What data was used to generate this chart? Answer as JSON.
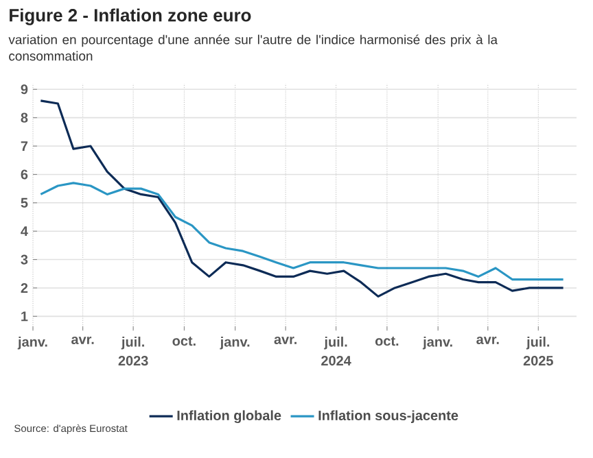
{
  "chart_data": {
    "type": "line",
    "title": "Figure 2 - Inflation zone euro",
    "subtitle": "variation en pourcentage d'une année sur l'autre de l'indice harmonisé des prix à la consommation",
    "x": [
      "2023-01-15",
      "2023-02-15",
      "2023-03-15",
      "2023-04-15",
      "2023-05-15",
      "2023-06-15",
      "2023-07-15",
      "2023-08-15",
      "2023-09-15",
      "2023-10-15",
      "2023-11-15",
      "2023-12-15",
      "2024-01-15",
      "2024-02-15",
      "2024-03-15",
      "2024-04-15",
      "2024-05-15",
      "2024-06-15",
      "2024-07-15",
      "2024-08-15",
      "2024-09-15",
      "2024-10-15",
      "2024-11-15",
      "2024-12-15",
      "2025-01-15",
      "2025-02-15",
      "2025-03-15",
      "2025-04-15",
      "2025-05-15",
      "2025-06-15",
      "2025-07-15",
      "2025-08-15"
    ],
    "series": [
      {
        "name": "Inflation globale",
        "color": "#0d2b56",
        "values": [
          8.6,
          8.5,
          6.9,
          7.0,
          6.1,
          5.5,
          5.3,
          5.2,
          4.3,
          2.9,
          2.4,
          2.9,
          2.8,
          2.6,
          2.4,
          2.4,
          2.6,
          2.5,
          2.6,
          2.2,
          1.7,
          2.0,
          2.2,
          2.4,
          2.5,
          2.3,
          2.2,
          2.2,
          1.9,
          2.0,
          2.0,
          2.0
        ]
      },
      {
        "name": "Inflation sous-jacente",
        "color": "#2a96c4",
        "values": [
          5.3,
          5.6,
          5.7,
          5.6,
          5.3,
          5.5,
          5.5,
          5.3,
          4.5,
          4.2,
          3.6,
          3.4,
          3.3,
          3.1,
          2.9,
          2.7,
          2.9,
          2.9,
          2.9,
          2.8,
          2.7,
          2.7,
          2.7,
          2.7,
          2.7,
          2.6,
          2.4,
          2.7,
          2.3,
          2.3,
          2.3,
          2.3
        ]
      }
    ],
    "xlim": [
      "2023-01-01",
      "2025-09-08"
    ],
    "xticks": [
      {
        "value": "2023-01-01",
        "label": "janv."
      },
      {
        "value": "2023-04-01",
        "label": "avr."
      },
      {
        "value": "2023-07-01",
        "label": "juil."
      },
      {
        "value": "2023-10-01",
        "label": "oct."
      },
      {
        "value": "2024-01-01",
        "label": "janv."
      },
      {
        "value": "2024-04-01",
        "label": "avr."
      },
      {
        "value": "2024-07-01",
        "label": "juil."
      },
      {
        "value": "2024-10-01",
        "label": "oct."
      },
      {
        "value": "2025-01-01",
        "label": "janv."
      },
      {
        "value": "2025-04-01",
        "label": "avr."
      },
      {
        "value": "2025-07-01",
        "label": "juil."
      }
    ],
    "ylim": [
      0.5,
      9.2
    ],
    "yticks": [
      1,
      2,
      3,
      4,
      5,
      6,
      7,
      8,
      9
    ],
    "grid": true,
    "legend": "bottom",
    "marker": "none",
    "line_style": "solid",
    "x2lim": [
      "2023-01-01",
      "2025-09-08"
    ],
    "x2ticks": [
      {
        "value": "2023-07-01",
        "label": "2023"
      },
      {
        "value": "2024-07-01",
        "label": "2024"
      },
      {
        "value": "2025-07-01",
        "label": "2025"
      }
    ],
    "annotations": [
      "Source: d'après Eurostat"
    ]
  }
}
